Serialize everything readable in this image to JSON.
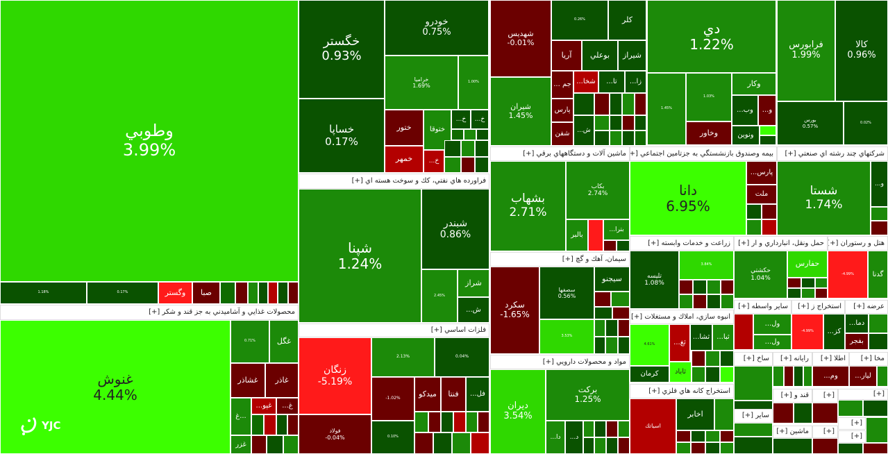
{
  "colors": {
    "bright": "#2fd800",
    "lime": "#3cff00",
    "green": "#1c8a09",
    "mid": "#0f6b00",
    "dark": "#0a5200",
    "darkred": "#6b0000",
    "red": "#b30000",
    "brightred": "#ff1a1a"
  },
  "headers": [
    "محصولات غذايي و آشاميدني به جز قند و شكر [+]",
    "فراورده هاي نفتي، كك و سوخت هسته اي [+]",
    "فلزات اساسي [+]",
    "ماشين آلات و دستگاههاي برقي [+]",
    "سيمان، آهك و گچ [+]",
    "مواد و محصولات دارويي [+]",
    "بيمه وصندوق بازنشستگي به جزتامين اجتماعي [+]",
    "شركتهاي چند رشته اي صنعتي [+]",
    "زراعت و خدمات وابسته [+]",
    "حمل ونقل، انبارداري و ار [+]",
    "هتل و رستوران [+]",
    "انبوه سازي، املاك و مستغلات [+]",
    "سایر واسطه [+]",
    "استخراج ز [+]",
    "عرضه [+]",
    "استخراج كانه هاي فلزي [+]",
    "ساخ [+]",
    "رایانه [+]",
    "اطلا [+]",
    "مخا [+]",
    "قند و [+]",
    "[+]",
    "سایر [+]",
    "ماشین [+]",
    "[+]",
    "[+]",
    "[+]",
    "[+]"
  ],
  "tiles": [
    {
      "name": "وطوبي",
      "pct": "3.99%",
      "c": "bright"
    },
    {
      "name": "",
      "pct": "1.18%",
      "c": "dark"
    },
    {
      "name": "",
      "pct": "0.17%",
      "c": "dark"
    },
    {
      "name": "وگستر",
      "pct": "",
      "c": "brightred"
    },
    {
      "name": "صبا",
      "pct": "",
      "c": "darkred"
    },
    {
      "name": "غنوش",
      "pct": "4.44%",
      "c": "lime"
    },
    {
      "name": "",
      "pct": "0.71%",
      "c": "green"
    },
    {
      "name": "غگل",
      "pct": "",
      "c": "green"
    },
    {
      "name": "غشاذر",
      "pct": "",
      "c": "darkred"
    },
    {
      "name": "غاذر",
      "pct": "",
      "c": "darkred"
    },
    {
      "name": "غ...",
      "pct": "",
      "c": "green"
    },
    {
      "name": "...غپو",
      "pct": "",
      "c": "red"
    },
    {
      "name": "...غ",
      "pct": "",
      "c": "darkred"
    },
    {
      "name": "غزر",
      "pct": "",
      "c": "green"
    },
    {
      "name": "خگستر",
      "pct": "0.93%",
      "c": "dark"
    },
    {
      "name": "خودرو",
      "pct": "0.75%",
      "c": "dark"
    },
    {
      "name": "خساپا",
      "pct": "0.17%",
      "c": "dark"
    },
    {
      "name": "خراميا",
      "pct": "1.69%",
      "c": "green"
    },
    {
      "name": "",
      "pct": "1.00%",
      "c": "green"
    },
    {
      "name": "ختور",
      "pct": "",
      "c": "darkred"
    },
    {
      "name": "ختوقا",
      "pct": "",
      "c": "green"
    },
    {
      "name": "خمهر",
      "pct": "",
      "c": "red"
    },
    {
      "name": "...خ",
      "pct": "",
      "c": "dark"
    },
    {
      "name": "...خ",
      "pct": "",
      "c": "dark"
    },
    {
      "name": "...خ",
      "pct": "",
      "c": "red"
    },
    {
      "name": "شپنا",
      "pct": "1.24%",
      "c": "green"
    },
    {
      "name": "شبندر",
      "pct": "0.86%",
      "c": "dark"
    },
    {
      "name": "",
      "pct": "2.45%",
      "c": "green"
    },
    {
      "name": "شراز",
      "pct": "",
      "c": "green"
    },
    {
      "name": "...ش",
      "pct": "",
      "c": "dark"
    },
    {
      "name": "زنگان",
      "pct": "-5.19%",
      "c": "brightred"
    },
    {
      "name": "فولاد",
      "pct": "-0.04%",
      "c": "darkred"
    },
    {
      "name": "",
      "pct": "2.13%",
      "c": "green"
    },
    {
      "name": "",
      "pct": "0.04%",
      "c": "dark"
    },
    {
      "name": "",
      "pct": "-1.02%",
      "c": "darkred"
    },
    {
      "name": "ميدكو",
      "pct": "",
      "c": "darkred"
    },
    {
      "name": "فنتا",
      "pct": "",
      "c": "darkred"
    },
    {
      "name": "...فل",
      "pct": "",
      "c": "dark"
    },
    {
      "name": "",
      "pct": "0.10%",
      "c": "dark"
    },
    {
      "name": "شهديس",
      "pct": "-0.01%",
      "c": "darkred"
    },
    {
      "name": "",
      "pct": "0.26%",
      "c": "dark"
    },
    {
      "name": "كلر",
      "pct": "",
      "c": "dark"
    },
    {
      "name": "آريا",
      "pct": "",
      "c": "darkred"
    },
    {
      "name": "بوعلي",
      "pct": "",
      "c": "dark"
    },
    {
      "name": "شيراز",
      "pct": "",
      "c": "dark"
    },
    {
      "name": "شيران",
      "pct": "1.45%",
      "c": "green"
    },
    {
      "name": "... جم",
      "pct": "",
      "c": "darkred"
    },
    {
      "name": "...شخا",
      "pct": "",
      "c": "red"
    },
    {
      "name": "...تا",
      "pct": "",
      "c": "dark"
    },
    {
      "name": "...زا",
      "pct": "",
      "c": "dark"
    },
    {
      "name": "پارس",
      "pct": "",
      "c": "darkred"
    },
    {
      "name": "شفن",
      "pct": "",
      "c": "darkred"
    },
    {
      "name": "...ش",
      "pct": "",
      "c": "dark"
    },
    {
      "name": "دي",
      "pct": "1.22%",
      "c": "green"
    },
    {
      "name": "",
      "pct": "1.45%",
      "c": "green"
    },
    {
      "name": "",
      "pct": "1.03%",
      "c": "green"
    },
    {
      "name": "وكار",
      "pct": "",
      "c": "green"
    },
    {
      "name": "...وب",
      "pct": "",
      "c": "dark"
    },
    {
      "name": "...و",
      "pct": "",
      "c": "darkred"
    },
    {
      "name": "وخاور",
      "pct": "",
      "c": "darkred"
    },
    {
      "name": "ونوين",
      "pct": "",
      "c": "dark"
    },
    {
      "name": "فرابورس",
      "pct": "1.99%",
      "c": "green"
    },
    {
      "name": "كالا",
      "pct": "0.96%",
      "c": "dark"
    },
    {
      "name": "بورس",
      "pct": "0.57%",
      "c": "dark"
    },
    {
      "name": "",
      "pct": "0.02%",
      "c": "dark"
    },
    {
      "name": "بشهاب",
      "pct": "2.71%",
      "c": "green"
    },
    {
      "name": "بكاب",
      "pct": "2.74%",
      "c": "green"
    },
    {
      "name": "بالبر",
      "pct": "",
      "c": "green"
    },
    {
      "name": "...بترا",
      "pct": "",
      "c": "green"
    },
    {
      "name": "سكرد",
      "pct": "-1.65%",
      "c": "darkred"
    },
    {
      "name": "سصفها",
      "pct": "0.56%",
      "c": "dark"
    },
    {
      "name": "سيجنو",
      "pct": "",
      "c": "dark"
    },
    {
      "name": "",
      "pct": "3.53%",
      "c": "bright"
    },
    {
      "name": "ديران",
      "pct": "3.54%",
      "c": "bright"
    },
    {
      "name": "بركت",
      "pct": "1.25%",
      "c": "green"
    },
    {
      "name": "...دا",
      "pct": "",
      "c": "dark"
    },
    {
      "name": "...د",
      "pct": "",
      "c": "dark"
    },
    {
      "name": "دانا",
      "pct": "6.95%",
      "c": "lime"
    },
    {
      "name": "...پارس",
      "pct": "",
      "c": "darkred"
    },
    {
      "name": "ملت",
      "pct": "",
      "c": "darkred"
    },
    {
      "name": "شستا",
      "pct": "1.74%",
      "c": "green"
    },
    {
      "name": "...و",
      "pct": "",
      "c": "dark"
    },
    {
      "name": "تليسه",
      "pct": "1.08%",
      "c": "dark"
    },
    {
      "name": "",
      "pct": "3.84%",
      "c": "bright"
    },
    {
      "name": "حكشتي",
      "pct": "1.04%",
      "c": "green"
    },
    {
      "name": "حفارس",
      "pct": "",
      "c": "bright"
    },
    {
      "name": "",
      "pct": "-4.99%",
      "c": "brightred"
    },
    {
      "name": "گدنا",
      "pct": "",
      "c": "green"
    },
    {
      "name": "",
      "pct": "4.61%",
      "c": "lime"
    },
    {
      "name": "...ثغ",
      "pct": "",
      "c": "red"
    },
    {
      "name": "...ثشا",
      "pct": "",
      "c": "dark"
    },
    {
      "name": "...ثبا",
      "pct": "",
      "c": "green"
    },
    {
      "name": "ثاباد",
      "pct": "",
      "c": "lime"
    },
    {
      "name": "كرمان",
      "pct": "",
      "c": "dark"
    },
    {
      "name": "...ول",
      "pct": "",
      "c": "green"
    },
    {
      "name": "...ول",
      "pct": "",
      "c": "green"
    },
    {
      "name": "",
      "pct": "-4.99%",
      "c": "brightred"
    },
    {
      "name": "...كز",
      "pct": "",
      "c": "dark"
    },
    {
      "name": "...دما",
      "pct": "",
      "c": "dark"
    },
    {
      "name": "بفجر",
      "pct": "",
      "c": "darkred"
    },
    {
      "name": "كدما",
      "pct": "-2.56%",
      "c": "red"
    },
    {
      "name": "فزر",
      "pct": "",
      "c": "dark"
    },
    {
      "name": "",
      "pct": "1.50%",
      "c": "green"
    },
    {
      "name": "اسياتك",
      "pct": "",
      "c": "darkred"
    },
    {
      "name": "اخابر",
      "pct": "",
      "c": "darkred"
    },
    {
      "name": "قچار",
      "pct": "",
      "c": "darkred"
    },
    {
      "name": "...وم",
      "pct": "",
      "c": "green"
    },
    {
      "name": "...لیار",
      "pct": "",
      "c": "dark"
    }
  ],
  "logo": {
    "text": "YJC"
  }
}
